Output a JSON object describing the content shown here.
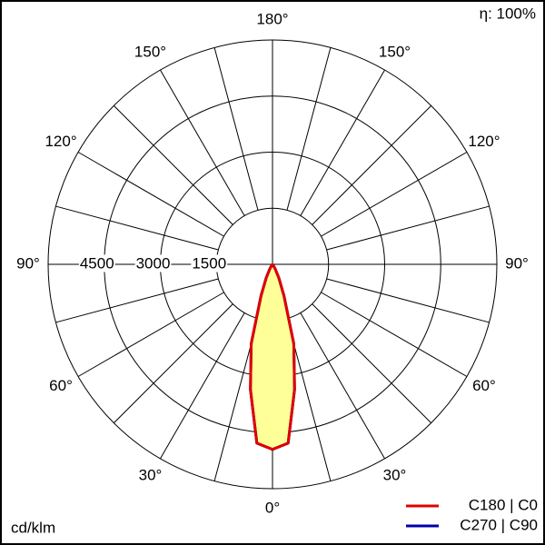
{
  "chart_data": {
    "type": "polar",
    "efficiency_label": "η: 100%",
    "unit_label": "cd/klm",
    "angles": [
      0,
      5,
      10,
      15,
      20,
      25,
      30,
      35,
      40
    ],
    "series": [
      {
        "name": "C270 | C90",
        "color": "#0000aa",
        "values": [
          4950,
          4800,
          3400,
          2200,
          900,
          400,
          150,
          50,
          0
        ]
      },
      {
        "name": "C180 | C0",
        "color": "#e00000",
        "values": [
          4950,
          4800,
          3400,
          2200,
          900,
          400,
          150,
          50,
          0
        ]
      }
    ],
    "fill_color": "#ffff99",
    "rlim": [
      0,
      6000
    ],
    "rticks": [
      1500,
      3000,
      4500
    ],
    "angle_ticks": [
      {
        "value": 0,
        "label": "0°"
      },
      {
        "value": 30,
        "label": "30°"
      },
      {
        "value": 60,
        "label": "60°"
      },
      {
        "value": 90,
        "label": "90°"
      },
      {
        "value": 120,
        "label": "120°"
      },
      {
        "value": 150,
        "label": "150°"
      },
      {
        "value": 180,
        "label": "180°"
      }
    ]
  }
}
